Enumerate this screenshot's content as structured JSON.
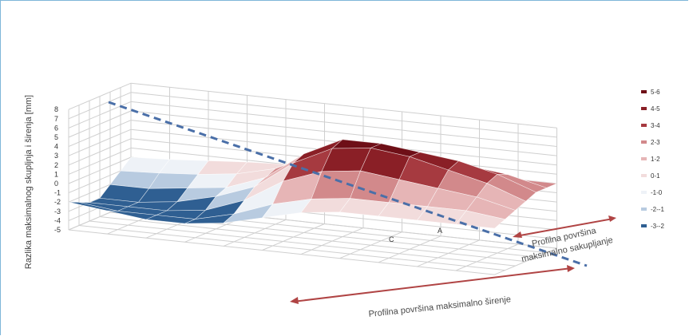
{
  "chart_data": {
    "type": "surface",
    "title": "",
    "ylabel": "Razlika maksimalnog skupljnja i širenja [mm]",
    "z_ticks": [
      "-5",
      "-4",
      "-3",
      "-2",
      "-1",
      "0",
      "1",
      "2",
      "3",
      "4",
      "5",
      "6",
      "7",
      "8"
    ],
    "zlim": [
      -5,
      8
    ],
    "grid": true,
    "legend_position": "right",
    "legend": [
      {
        "label": "5-6",
        "color": "#6e0f17"
      },
      {
        "label": "4-5",
        "color": "#8a1f26"
      },
      {
        "label": "3-4",
        "color": "#a63a40"
      },
      {
        "label": "2-3",
        "color": "#d2898b"
      },
      {
        "label": "1-2",
        "color": "#e6b5b6"
      },
      {
        "label": "0-1",
        "color": "#f2dcdc"
      },
      {
        "label": "-1-0",
        "color": "#eef2f7"
      },
      {
        "label": "-2--1",
        "color": "#b8cbe0"
      },
      {
        "label": "-3--2",
        "color": "#2f5f92"
      }
    ],
    "axis_categories": [
      "C",
      "A"
    ],
    "surface_z": [
      [
        0.0,
        0.2,
        0.5,
        0.8,
        1.0,
        1.2,
        1.5,
        1.8,
        2.0,
        2.0,
        2.0,
        2.0
      ],
      [
        -1.0,
        -0.8,
        -0.5,
        0.0,
        1.0,
        3.0,
        4.5,
        4.5,
        4.0,
        3.5,
        3.0,
        2.0
      ],
      [
        -2.0,
        -2.0,
        -1.5,
        -1.0,
        0.5,
        3.5,
        5.5,
        5.5,
        5.0,
        4.5,
        3.5,
        2.0
      ],
      [
        -3.0,
        -3.0,
        -2.5,
        -1.5,
        0.0,
        3.0,
        5.0,
        5.5,
        5.0,
        4.0,
        3.0,
        1.5
      ],
      [
        -3.0,
        -3.0,
        -3.0,
        -2.5,
        -1.0,
        1.5,
        3.0,
        3.5,
        3.0,
        2.5,
        2.0,
        1.0
      ],
      [
        -2.5,
        -3.0,
        -3.0,
        -3.0,
        -2.0,
        -0.5,
        0.5,
        1.0,
        1.0,
        1.0,
        1.0,
        0.5
      ],
      [
        -2.0,
        -2.5,
        -3.0,
        -3.0,
        -2.5,
        -1.5,
        -0.5,
        0.0,
        0.0,
        0.0,
        0.0,
        0.0
      ]
    ]
  },
  "annotations": {
    "dashed_line_label_1": "Profilna površina",
    "dashed_line_label_2": "maksimalno sakupljanje",
    "arrow_label": "Profilna površina maksimalno širenje"
  }
}
